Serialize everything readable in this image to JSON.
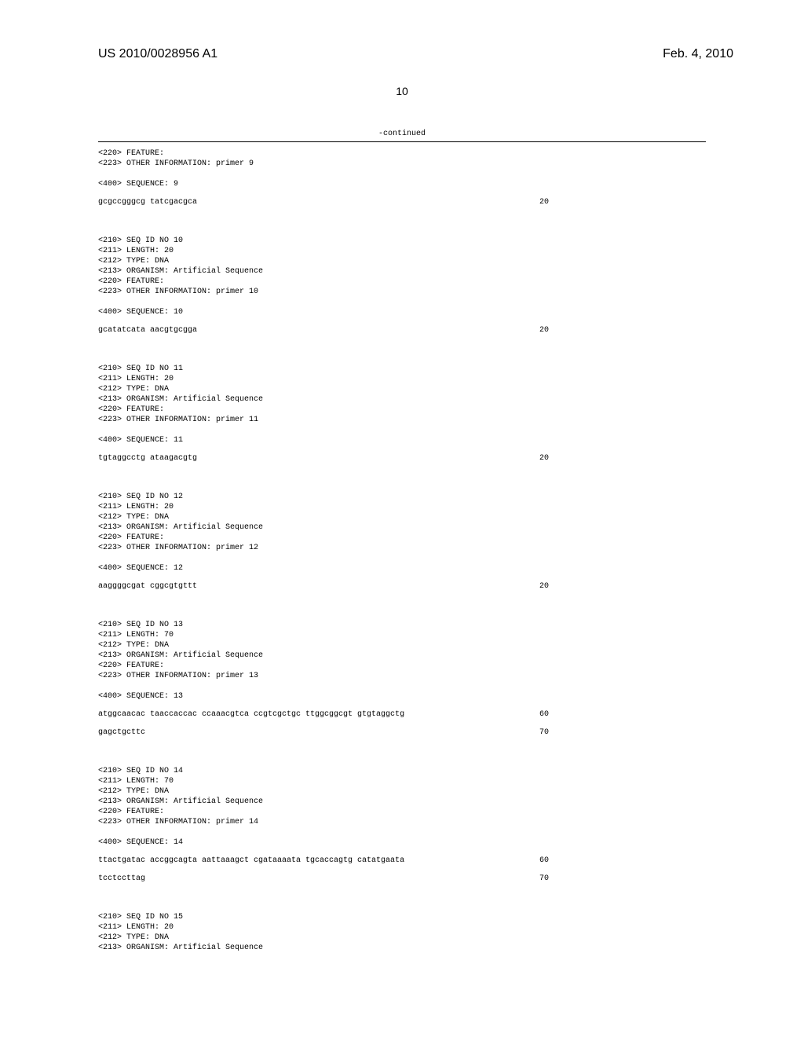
{
  "header": {
    "patent_number": "US 2010/0028956 A1",
    "date": "Feb. 4, 2010",
    "page_number": "10"
  },
  "continued_label": "-continued",
  "blocks": [
    {
      "meta": [
        "<220> FEATURE:",
        "<223> OTHER INFORMATION: primer 9",
        "",
        "<400> SEQUENCE: 9"
      ],
      "lines": [
        {
          "text": "gcgccgggcg tatcgacgca",
          "num": "20"
        }
      ]
    },
    {
      "meta": [
        "<210> SEQ ID NO 10",
        "<211> LENGTH: 20",
        "<212> TYPE: DNA",
        "<213> ORGANISM: Artificial Sequence",
        "<220> FEATURE:",
        "<223> OTHER INFORMATION: primer 10",
        "",
        "<400> SEQUENCE: 10"
      ],
      "lines": [
        {
          "text": "gcatatcata aacgtgcgga",
          "num": "20"
        }
      ]
    },
    {
      "meta": [
        "<210> SEQ ID NO 11",
        "<211> LENGTH: 20",
        "<212> TYPE: DNA",
        "<213> ORGANISM: Artificial Sequence",
        "<220> FEATURE:",
        "<223> OTHER INFORMATION: primer 11",
        "",
        "<400> SEQUENCE: 11"
      ],
      "lines": [
        {
          "text": "tgtaggcctg ataagacgtg",
          "num": "20"
        }
      ]
    },
    {
      "meta": [
        "<210> SEQ ID NO 12",
        "<211> LENGTH: 20",
        "<212> TYPE: DNA",
        "<213> ORGANISM: Artificial Sequence",
        "<220> FEATURE:",
        "<223> OTHER INFORMATION: primer 12",
        "",
        "<400> SEQUENCE: 12"
      ],
      "lines": [
        {
          "text": "aaggggcgat cggcgtgttt",
          "num": "20"
        }
      ]
    },
    {
      "meta": [
        "<210> SEQ ID NO 13",
        "<211> LENGTH: 70",
        "<212> TYPE: DNA",
        "<213> ORGANISM: Artificial Sequence",
        "<220> FEATURE:",
        "<223> OTHER INFORMATION: primer 13",
        "",
        "<400> SEQUENCE: 13"
      ],
      "lines": [
        {
          "text": "atggcaacac taaccaccac ccaaacgtca ccgtcgctgc ttggcggcgt gtgtaggctg",
          "num": "60"
        },
        {
          "text": "gagctgcttc",
          "num": "70"
        }
      ]
    },
    {
      "meta": [
        "<210> SEQ ID NO 14",
        "<211> LENGTH: 70",
        "<212> TYPE: DNA",
        "<213> ORGANISM: Artificial Sequence",
        "<220> FEATURE:",
        "<223> OTHER INFORMATION: primer 14",
        "",
        "<400> SEQUENCE: 14"
      ],
      "lines": [
        {
          "text": "ttactgatac accggcagta aattaaagct cgataaaata tgcaccagtg catatgaata",
          "num": "60"
        },
        {
          "text": "tcctccttag",
          "num": "70"
        }
      ]
    },
    {
      "meta": [
        "<210> SEQ ID NO 15",
        "<211> LENGTH: 20",
        "<212> TYPE: DNA",
        "<213> ORGANISM: Artificial Sequence"
      ],
      "lines": []
    }
  ]
}
